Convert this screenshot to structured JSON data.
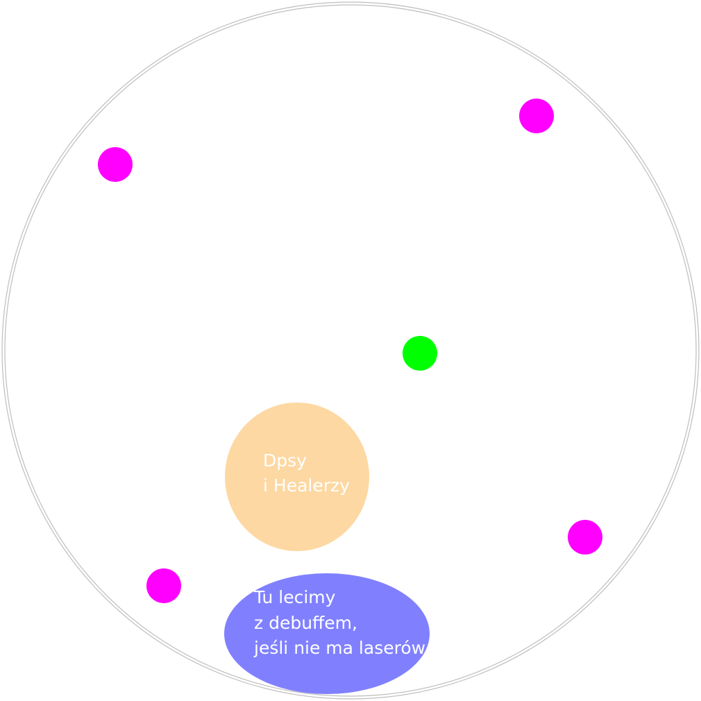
{
  "arena": {
    "border_color": "#bdbdbd",
    "fill": "#ffffff"
  },
  "markers": {
    "magenta_color": "#ff00ff",
    "green_color": "#00ff00"
  },
  "zones": {
    "dps_healers": {
      "color": "#fdd8a2",
      "lines": [
        "Dpsy",
        "i Healerzy"
      ]
    },
    "debuff": {
      "color": "#8080ff",
      "lines": [
        "Tu lecimy",
        "z debuffem,",
        "jeśli nie ma laserów"
      ]
    }
  }
}
